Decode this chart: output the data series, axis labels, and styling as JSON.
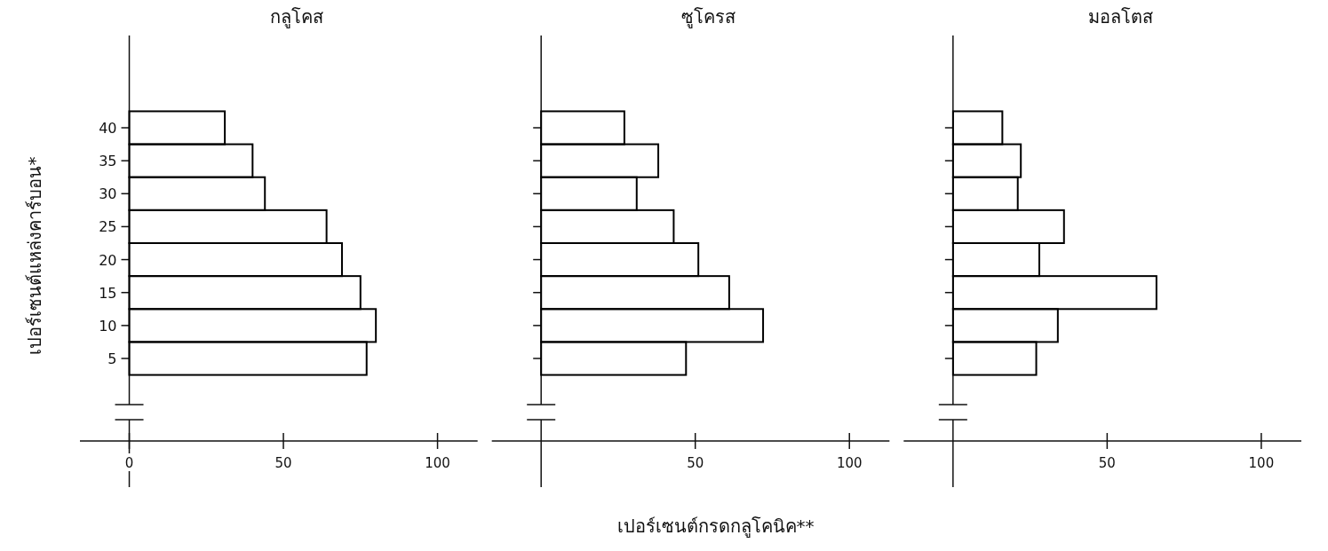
{
  "chart_data": [
    {
      "type": "histogram",
      "orientation": "horizontal",
      "title": "กลูโคส",
      "ylabel": "เปอร์เซนต์แหล่งคาร์บอน*",
      "bins": [
        2.5,
        7.5,
        12.5,
        17.5,
        22.5,
        27.5,
        32.5,
        37.5,
        42.5
      ],
      "values": [
        77,
        80,
        75,
        69,
        64,
        44,
        40,
        31
      ],
      "color": "#000000",
      "xlim": [
        -16,
        113
      ],
      "xticks": [
        0,
        50,
        100
      ],
      "ylim": [
        -2,
        54
      ],
      "yticks": [
        5,
        10,
        15,
        20,
        25,
        30,
        35,
        40
      ]
    },
    {
      "type": "histogram",
      "orientation": "horizontal",
      "title": "ซูโครส",
      "xlabel": "เปอร์เซนต์กรดกลูโคนิค**",
      "bins": [
        2.5,
        7.5,
        12.5,
        17.5,
        22.5,
        27.5,
        32.5,
        37.5,
        42.5
      ],
      "values": [
        47,
        72,
        61,
        51,
        43,
        31,
        38,
        27
      ],
      "color": "#000000",
      "xlim": [
        -16,
        113
      ],
      "xticks": [
        50,
        100
      ],
      "ylim": [
        -2,
        54
      ],
      "yticks": [
        {
          "value": 5,
          "label": null
        },
        {
          "value": 10,
          "label": null
        },
        {
          "value": 15,
          "label": null
        },
        {
          "value": 20,
          "label": null
        },
        {
          "value": 25,
          "label": null
        },
        {
          "value": 30,
          "label": null
        },
        {
          "value": 35,
          "label": null
        },
        {
          "value": 40,
          "label": null
        }
      ],
      "tick_labels": "x"
    },
    {
      "type": "histogram",
      "orientation": "horizontal",
      "title": "มอลโตส",
      "bins": [
        2.5,
        7.5,
        12.5,
        17.5,
        22.5,
        27.5,
        32.5,
        37.5,
        42.5
      ],
      "values": [
        27,
        34,
        66,
        28,
        36,
        21,
        22,
        16
      ],
      "color": "#000000",
      "xlim": [
        -16,
        113
      ],
      "xticks": [
        50,
        100
      ],
      "ylim": [
        -2,
        54
      ],
      "yticks": [
        {
          "value": 5,
          "label": null
        },
        {
          "value": 10,
          "label": null
        },
        {
          "value": 15,
          "label": null
        },
        {
          "value": 20,
          "label": null
        },
        {
          "value": 25,
          "label": null
        },
        {
          "value": 30,
          "label": null
        },
        {
          "value": 35,
          "label": null
        },
        {
          "value": 40,
          "label": null
        }
      ],
      "tick_labels": "x"
    }
  ]
}
